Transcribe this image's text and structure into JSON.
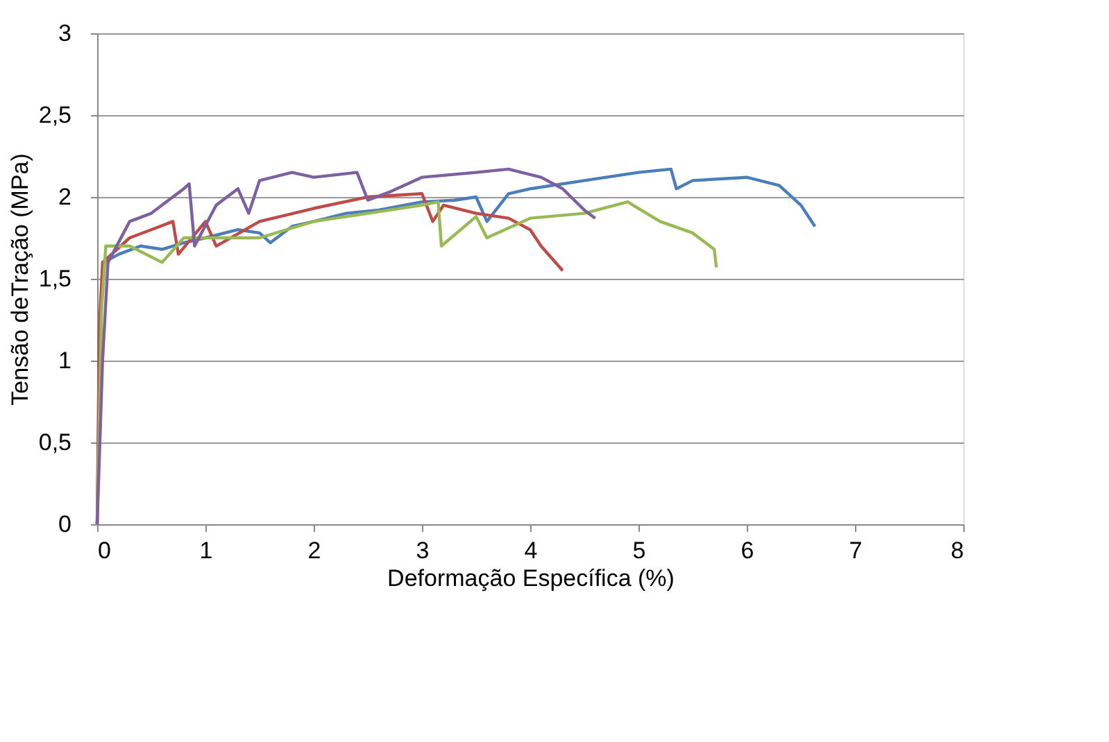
{
  "chart_data": {
    "type": "line",
    "xlabel": "Deformação Específica (%)",
    "ylabel": "Tensão deTração (MPa)",
    "xlim": [
      0,
      8
    ],
    "xticks": [
      0,
      1,
      2,
      3,
      4,
      5,
      6,
      7,
      8
    ],
    "ylim": [
      0,
      3
    ],
    "yticks": [
      0,
      {
        "value": 0.5,
        "label": "0,5"
      },
      1,
      {
        "value": 1.5,
        "label": "1,5"
      },
      2,
      {
        "value": 2.5,
        "label": "2,5"
      },
      3
    ],
    "grid": "y",
    "legend": false,
    "marker": "none",
    "line_style": "solid",
    "series": [
      {
        "color": "#4a7ebb",
        "x": [
          0,
          0.03,
          0.06,
          0.2,
          0.4,
          0.6,
          0.8,
          1.0,
          1.3,
          1.5,
          1.6,
          1.8,
          2.0,
          2.3,
          2.6,
          3.0,
          3.3,
          3.5,
          3.6,
          3.8,
          4.0,
          4.5,
          5.0,
          5.3,
          5.35,
          5.5,
          6.0,
          6.3,
          6.5,
          6.63
        ],
        "values": [
          0,
          1.2,
          1.6,
          1.65,
          1.7,
          1.68,
          1.72,
          1.75,
          1.8,
          1.78,
          1.72,
          1.82,
          1.85,
          1.9,
          1.92,
          1.97,
          1.98,
          2.0,
          1.85,
          2.02,
          2.05,
          2.1,
          2.15,
          2.17,
          2.05,
          2.1,
          2.12,
          2.07,
          1.95,
          1.82
        ]
      },
      {
        "color": "#be4b48",
        "x": [
          0,
          0.02,
          0.05,
          0.3,
          0.5,
          0.7,
          0.75,
          1.0,
          1.1,
          1.5,
          2.0,
          2.5,
          3.0,
          3.1,
          3.2,
          3.5,
          3.8,
          4.0,
          4.1,
          4.3
        ],
        "values": [
          0,
          1.2,
          1.6,
          1.75,
          1.8,
          1.85,
          1.65,
          1.85,
          1.7,
          1.85,
          1.93,
          2.0,
          2.02,
          1.85,
          1.95,
          1.9,
          1.87,
          1.8,
          1.7,
          1.55
        ]
      },
      {
        "color": "#98b954",
        "x": [
          0,
          0.04,
          0.08,
          0.3,
          0.6,
          0.8,
          1.0,
          1.5,
          2.0,
          2.5,
          3.0,
          3.15,
          3.18,
          3.5,
          3.6,
          4.0,
          4.5,
          4.9,
          5.2,
          5.5,
          5.7,
          5.72
        ],
        "values": [
          0,
          1.3,
          1.7,
          1.7,
          1.6,
          1.75,
          1.75,
          1.75,
          1.85,
          1.9,
          1.95,
          1.97,
          1.7,
          1.88,
          1.75,
          1.87,
          1.9,
          1.97,
          1.85,
          1.78,
          1.68,
          1.57
        ]
      },
      {
        "color": "#7d60a0",
        "x": [
          0,
          0.05,
          0.1,
          0.3,
          0.5,
          0.8,
          0.85,
          0.9,
          1.1,
          1.3,
          1.4,
          1.5,
          1.8,
          2.0,
          2.4,
          2.5,
          2.7,
          3.0,
          3.5,
          3.8,
          4.1,
          4.3,
          4.5,
          4.6
        ],
        "values": [
          0,
          1.0,
          1.6,
          1.85,
          1.9,
          2.05,
          2.08,
          1.7,
          1.95,
          2.05,
          1.9,
          2.1,
          2.15,
          2.12,
          2.15,
          1.98,
          2.03,
          2.12,
          2.15,
          2.17,
          2.12,
          2.05,
          1.92,
          1.87
        ]
      }
    ]
  }
}
